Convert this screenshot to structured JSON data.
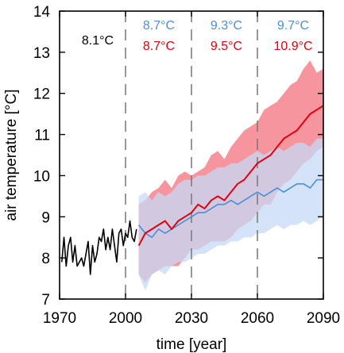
{
  "chart_data": {
    "type": "line",
    "xlabel": "time [year]",
    "ylabel": "air temperature [°C]",
    "xlim": [
      1970,
      2090
    ],
    "ylim": [
      7,
      14
    ],
    "x_ticks": [
      1970,
      2000,
      2030,
      2060,
      2090
    ],
    "y_ticks": [
      7,
      8,
      9,
      10,
      11,
      12,
      13,
      14
    ],
    "grid": false,
    "legend": "none",
    "period_dividers": [
      2000,
      2030,
      2060
    ],
    "annotations": {
      "observed_mean": {
        "text": "8.1°C",
        "color": "#000000"
      },
      "blue_means": [
        {
          "text": "8.7°C",
          "color": "#4a90d9"
        },
        {
          "text": "9.3°C",
          "color": "#4a90d9"
        },
        {
          "text": "9.7°C",
          "color": "#4a90d9"
        }
      ],
      "red_means": [
        {
          "text": "8.7°C",
          "color": "#e0000f"
        },
        {
          "text": "9.5°C",
          "color": "#e0000f"
        },
        {
          "text": "10.9°C",
          "color": "#e0000f"
        }
      ]
    },
    "series": [
      {
        "color": "#000000",
        "x": [
          1971,
          1972,
          1973,
          1974,
          1975,
          1976,
          1977,
          1978,
          1979,
          1980,
          1981,
          1982,
          1983,
          1984,
          1985,
          1986,
          1987,
          1988,
          1989,
          1990,
          1991,
          1992,
          1993,
          1994,
          1995,
          1996,
          1997,
          1998,
          1999,
          2000,
          2001,
          2002,
          2003,
          2004,
          2005
        ],
        "values": [
          7.9,
          8.5,
          7.8,
          8.3,
          8.5,
          7.9,
          8.3,
          7.8,
          7.9,
          8.0,
          7.8,
          8.1,
          8.4,
          7.6,
          8.3,
          7.9,
          8.1,
          8.5,
          8.4,
          8.7,
          8.2,
          8.5,
          8.2,
          8.7,
          8.3,
          7.9,
          8.6,
          8.7,
          8.3,
          8.6,
          8.5,
          8.9,
          8.5,
          8.4,
          8.7
        ]
      },
      {
        "color": "#e0000f",
        "band_color": "#f7959e",
        "x": [
          2006,
          2009,
          2012,
          2015,
          2018,
          2021,
          2024,
          2027,
          2030,
          2033,
          2036,
          2039,
          2042,
          2045,
          2048,
          2051,
          2054,
          2057,
          2060,
          2063,
          2066,
          2069,
          2072,
          2075,
          2078,
          2081,
          2084,
          2087,
          2090
        ],
        "values": [
          8.3,
          8.6,
          8.7,
          8.8,
          8.9,
          8.7,
          8.9,
          9.0,
          9.1,
          9.3,
          9.2,
          9.4,
          9.5,
          9.4,
          9.6,
          9.8,
          9.9,
          10.1,
          10.3,
          10.4,
          10.5,
          10.7,
          10.9,
          11.0,
          11.1,
          11.3,
          11.5,
          11.6,
          11.7
        ],
        "lower": [
          7.6,
          7.4,
          7.6,
          7.7,
          7.8,
          7.8,
          7.8,
          8.0,
          8.2,
          8.2,
          8.3,
          8.4,
          8.4,
          8.4,
          8.5,
          8.7,
          8.8,
          8.9,
          9.1,
          9.3,
          9.3,
          9.6,
          9.8,
          9.9,
          10.1,
          10.3,
          10.4,
          10.6,
          10.7
        ],
        "upper": [
          9.3,
          9.4,
          9.6,
          9.7,
          9.9,
          9.7,
          10.0,
          10.1,
          10.0,
          10.1,
          10.2,
          10.5,
          10.6,
          10.4,
          10.7,
          10.9,
          11.1,
          11.2,
          11.3,
          11.6,
          11.7,
          11.8,
          12.0,
          12.2,
          12.3,
          12.6,
          12.8,
          12.5,
          12.6
        ]
      },
      {
        "color": "#4a90d9",
        "band_color": "#c6daf5",
        "x": [
          2006,
          2009,
          2012,
          2015,
          2018,
          2021,
          2024,
          2027,
          2030,
          2033,
          2036,
          2039,
          2042,
          2045,
          2048,
          2051,
          2054,
          2057,
          2060,
          2063,
          2066,
          2069,
          2072,
          2075,
          2078,
          2081,
          2084,
          2087,
          2090
        ],
        "values": [
          8.8,
          8.6,
          8.5,
          8.7,
          8.6,
          8.7,
          8.8,
          8.9,
          9.0,
          9.1,
          9.1,
          9.2,
          9.3,
          9.3,
          9.4,
          9.3,
          9.4,
          9.5,
          9.6,
          9.5,
          9.6,
          9.7,
          9.6,
          9.7,
          9.8,
          9.8,
          9.7,
          9.9,
          9.9
        ],
        "lower": [
          7.6,
          7.2,
          7.6,
          7.7,
          7.6,
          7.8,
          7.9,
          7.9,
          8.0,
          8.1,
          8.1,
          8.2,
          8.3,
          8.3,
          8.4,
          8.4,
          8.5,
          8.5,
          8.6,
          8.6,
          8.7,
          8.8,
          8.7,
          8.8,
          8.8,
          8.9,
          8.8,
          8.9,
          9.0
        ],
        "upper": [
          9.5,
          9.6,
          9.4,
          9.6,
          9.5,
          9.6,
          9.8,
          9.9,
          9.9,
          10.0,
          10.0,
          10.1,
          10.2,
          10.2,
          10.3,
          10.3,
          10.4,
          10.5,
          10.6,
          10.5,
          10.6,
          10.7,
          10.6,
          10.7,
          10.8,
          10.8,
          10.7,
          10.9,
          10.9
        ]
      }
    ]
  }
}
